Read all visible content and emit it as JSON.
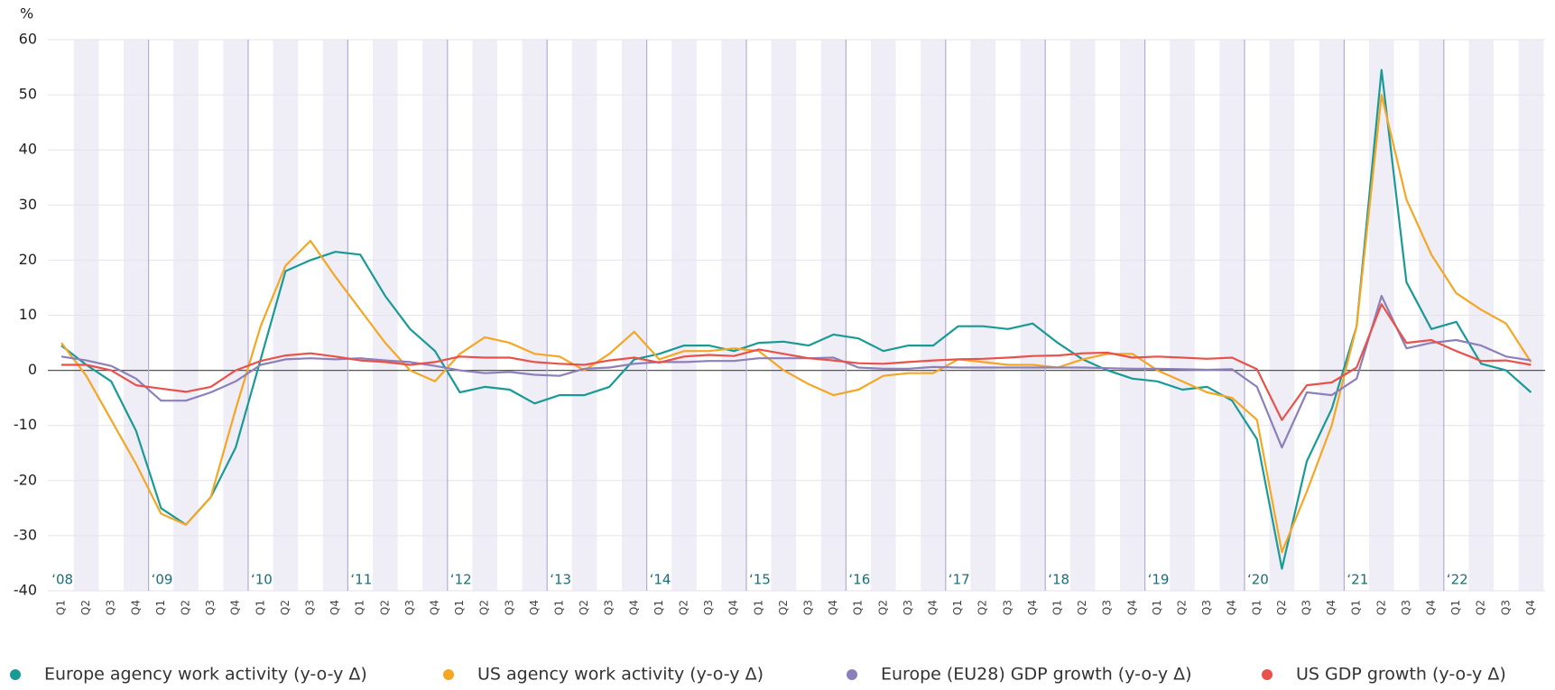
{
  "chart_data": {
    "type": "line",
    "y_label": "%",
    "categories": [
      "Q1",
      "Q2",
      "Q3",
      "Q4",
      "Q1",
      "Q2",
      "Q3",
      "Q4",
      "Q1",
      "Q2",
      "Q3",
      "Q4",
      "Q1",
      "Q2",
      "Q3",
      "Q4",
      "Q1",
      "Q2",
      "Q3",
      "Q4",
      "Q1",
      "Q2",
      "Q3",
      "Q4",
      "Q1",
      "Q2",
      "Q3",
      "Q4",
      "Q1",
      "Q2",
      "Q3",
      "Q4",
      "Q1",
      "Q2",
      "Q3",
      "Q4",
      "Q1",
      "Q2",
      "Q3",
      "Q4",
      "Q1",
      "Q2",
      "Q3",
      "Q4",
      "Q1",
      "Q2",
      "Q3",
      "Q4",
      "Q1",
      "Q2",
      "Q3",
      "Q4",
      "Q1",
      "Q2",
      "Q3",
      "Q4",
      "Q1",
      "Q2",
      "Q3",
      "Q4"
    ],
    "year_labels": [
      "‘08",
      "‘09",
      "‘10",
      "‘11",
      "‘12",
      "‘13",
      "‘14",
      "‘15",
      "‘16",
      "‘17",
      "‘18",
      "‘19",
      "‘20",
      "‘21",
      "‘22"
    ],
    "ylim": [
      -40,
      60
    ],
    "yticks": [
      -40,
      -30,
      -20,
      -10,
      0,
      10,
      20,
      30,
      40,
      50,
      60
    ],
    "grid": true,
    "series": [
      {
        "name": "Europe agency work activity (y-o-y Δ)",
        "color": "#1a9a96",
        "values": [
          4.5,
          1,
          -2,
          -11,
          -25,
          -28,
          -23,
          -14,
          2,
          18,
          20,
          21.5,
          21,
          13.5,
          7.5,
          3.5,
          -4,
          -3,
          -3.5,
          -6,
          -4.5,
          -4.5,
          -3,
          2,
          3,
          4.5,
          4.5,
          3.5,
          5,
          5.2,
          4.5,
          6.5,
          5.8,
          3.5,
          4.5,
          4.5,
          8,
          8,
          7.5,
          8.5,
          5,
          2,
          0,
          -1.5,
          -2,
          -3.5,
          -3,
          -5.5,
          -12.5,
          -36,
          -16.5,
          -7,
          8,
          54.5,
          16,
          7.5,
          8.8,
          1.2,
          0,
          -4
        ]
      },
      {
        "name": "US agency work activity (y-o-y Δ)",
        "color": "#f5a623",
        "values": [
          5,
          -1,
          -9,
          -17,
          -26,
          -28,
          -23,
          -7,
          8,
          19,
          23.5,
          17,
          11,
          5,
          0,
          -2,
          3,
          6,
          5,
          3,
          2.5,
          0,
          3,
          7,
          2,
          3.5,
          3.5,
          4,
          3.5,
          0,
          -2.5,
          -4.5,
          -3.5,
          -1,
          -0.5,
          -0.5,
          2,
          1.5,
          1,
          1,
          0.5,
          2,
          3,
          3,
          0,
          -2,
          -4,
          -5,
          -9,
          -33,
          -22,
          -10,
          8,
          50,
          31,
          21,
          14,
          11,
          8.5,
          1.5
        ]
      },
      {
        "name": "Europe (EU28) GDP growth (y-o-y Δ)",
        "color": "#8c7fba",
        "values": [
          2.5,
          1.8,
          0.8,
          -1.5,
          -5.5,
          -5.5,
          -4,
          -2,
          1,
          2,
          2.2,
          2,
          2.2,
          1.8,
          1.5,
          0.8,
          0,
          -0.5,
          -0.3,
          -0.8,
          -1,
          0.3,
          0.5,
          1.2,
          1.5,
          1.5,
          1.7,
          1.7,
          2.2,
          2.2,
          2.2,
          2.3,
          0.5,
          0.3,
          0.3,
          0.6,
          0.5,
          0.5,
          0.5,
          0.5,
          0.5,
          0.5,
          0.4,
          0.3,
          0.3,
          0.2,
          0.1,
          0.2,
          -3,
          -14,
          -4,
          -4.5,
          -1.5,
          13.5,
          4,
          5,
          5.5,
          4.5,
          2.5,
          1.8
        ]
      },
      {
        "name": "US GDP growth (y-o-y Δ)",
        "color": "#e8524a",
        "values": [
          1,
          1,
          0,
          -2.7,
          -3.3,
          -3.9,
          -3,
          0,
          1.7,
          2.7,
          3.1,
          2.5,
          1.8,
          1.5,
          1,
          1.5,
          2.5,
          2.3,
          2.3,
          1.5,
          1.2,
          1,
          1.8,
          2.3,
          1.4,
          2.5,
          2.8,
          2.6,
          3.8,
          3,
          2.2,
          1.8,
          1.3,
          1.2,
          1.5,
          1.8,
          2,
          2.1,
          2.3,
          2.6,
          2.7,
          3.1,
          3.2,
          2.3,
          2.5,
          2.3,
          2.1,
          2.3,
          0.2,
          -9,
          -2.7,
          -2.2,
          0.5,
          12,
          5,
          5.5,
          3.5,
          1.7,
          1.8,
          1
        ]
      }
    ]
  }
}
